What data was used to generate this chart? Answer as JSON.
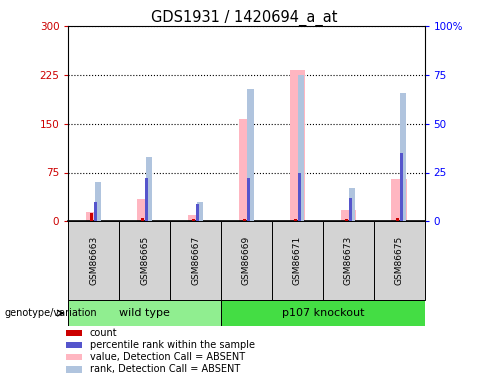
{
  "title": "GDS1931 / 1420694_a_at",
  "samples": [
    "GSM86663",
    "GSM86665",
    "GSM86667",
    "GSM86669",
    "GSM86671",
    "GSM86673",
    "GSM86675"
  ],
  "value_absent": [
    15,
    35,
    10,
    157,
    232,
    18,
    65
  ],
  "rank_absent_pct": [
    20,
    33,
    10,
    68,
    75,
    17,
    66
  ],
  "count_red": [
    13,
    5,
    3,
    4,
    3,
    4,
    5
  ],
  "rank_blue_pct": [
    10,
    22,
    9,
    22,
    25,
    12,
    35
  ],
  "ylim_left": [
    0,
    300
  ],
  "ylim_right": [
    0,
    100
  ],
  "yticks_left": [
    0,
    75,
    150,
    225,
    300
  ],
  "yticks_right": [
    0,
    25,
    50,
    75,
    100
  ],
  "color_value_absent": "#FFB6C1",
  "color_rank_absent": "#B0C4DE",
  "color_count": "#CC0000",
  "color_rank_blue": "#5555CC",
  "legend_items": [
    "count",
    "percentile rank within the sample",
    "value, Detection Call = ABSENT",
    "rank, Detection Call = ABSENT"
  ],
  "legend_colors": [
    "#CC0000",
    "#5555CC",
    "#FFB6C1",
    "#B0C4DE"
  ],
  "wt_color": "#90EE90",
  "ko_color": "#44DD44",
  "sample_bg": "#D3D3D3"
}
